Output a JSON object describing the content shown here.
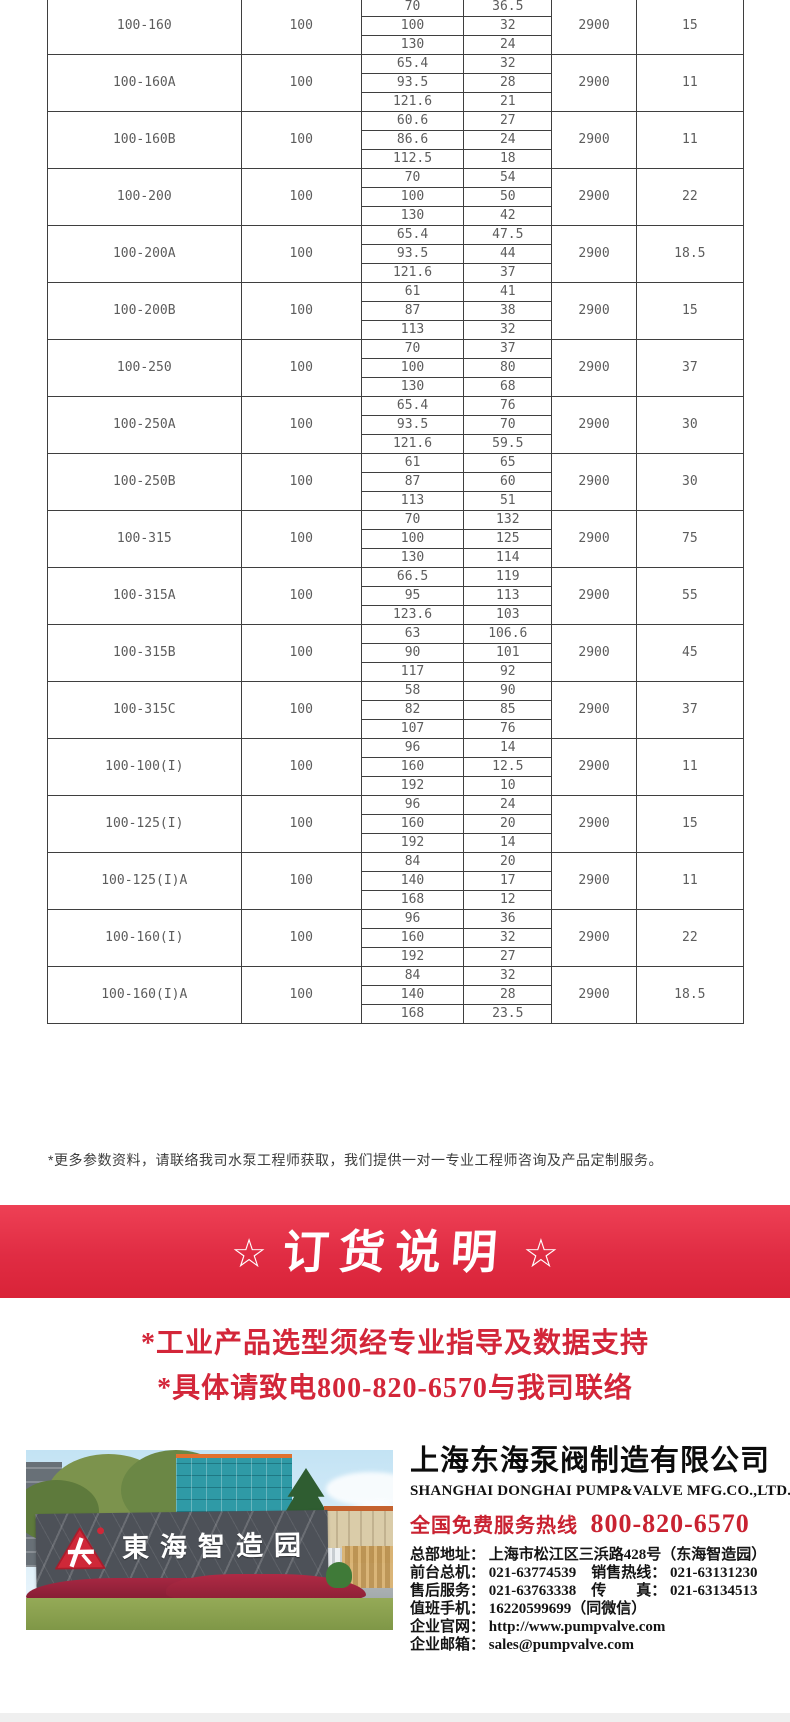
{
  "colors": {
    "accent_red": "#d32639",
    "banner_red": "#e02c43",
    "table_border": "#3f3f3f"
  },
  "table": {
    "rows": [
      {
        "model": "100-160",
        "dn": "100",
        "speed": "2900",
        "power": "15",
        "points": [
          [
            "70",
            "36.5"
          ],
          [
            "100",
            "32"
          ],
          [
            "130",
            "24"
          ]
        ]
      },
      {
        "model": "100-160A",
        "dn": "100",
        "speed": "2900",
        "power": "11",
        "points": [
          [
            "65.4",
            "32"
          ],
          [
            "93.5",
            "28"
          ],
          [
            "121.6",
            "21"
          ]
        ]
      },
      {
        "model": "100-160B",
        "dn": "100",
        "speed": "2900",
        "power": "11",
        "points": [
          [
            "60.6",
            "27"
          ],
          [
            "86.6",
            "24"
          ],
          [
            "112.5",
            "18"
          ]
        ]
      },
      {
        "model": "100-200",
        "dn": "100",
        "speed": "2900",
        "power": "22",
        "points": [
          [
            "70",
            "54"
          ],
          [
            "100",
            "50"
          ],
          [
            "130",
            "42"
          ]
        ]
      },
      {
        "model": "100-200A",
        "dn": "100",
        "speed": "2900",
        "power": "18.5",
        "points": [
          [
            "65.4",
            "47.5"
          ],
          [
            "93.5",
            "44"
          ],
          [
            "121.6",
            "37"
          ]
        ]
      },
      {
        "model": "100-200B",
        "dn": "100",
        "speed": "2900",
        "power": "15",
        "points": [
          [
            "61",
            "41"
          ],
          [
            "87",
            "38"
          ],
          [
            "113",
            "32"
          ]
        ]
      },
      {
        "model": "100-250",
        "dn": "100",
        "speed": "2900",
        "power": "37",
        "points": [
          [
            "70",
            "37"
          ],
          [
            "100",
            "80"
          ],
          [
            "130",
            "68"
          ]
        ]
      },
      {
        "model": "100-250A",
        "dn": "100",
        "speed": "2900",
        "power": "30",
        "points": [
          [
            "65.4",
            "76"
          ],
          [
            "93.5",
            "70"
          ],
          [
            "121.6",
            "59.5"
          ]
        ]
      },
      {
        "model": "100-250B",
        "dn": "100",
        "speed": "2900",
        "power": "30",
        "points": [
          [
            "61",
            "65"
          ],
          [
            "87",
            "60"
          ],
          [
            "113",
            "51"
          ]
        ]
      },
      {
        "model": "100-315",
        "dn": "100",
        "speed": "2900",
        "power": "75",
        "points": [
          [
            "70",
            "132"
          ],
          [
            "100",
            "125"
          ],
          [
            "130",
            "114"
          ]
        ]
      },
      {
        "model": "100-315A",
        "dn": "100",
        "speed": "2900",
        "power": "55",
        "points": [
          [
            "66.5",
            "119"
          ],
          [
            "95",
            "113"
          ],
          [
            "123.6",
            "103"
          ]
        ]
      },
      {
        "model": "100-315B",
        "dn": "100",
        "speed": "2900",
        "power": "45",
        "points": [
          [
            "63",
            "106.6"
          ],
          [
            "90",
            "101"
          ],
          [
            "117",
            "92"
          ]
        ]
      },
      {
        "model": "100-315C",
        "dn": "100",
        "speed": "2900",
        "power": "37",
        "points": [
          [
            "58",
            "90"
          ],
          [
            "82",
            "85"
          ],
          [
            "107",
            "76"
          ]
        ]
      },
      {
        "model": "100-100(I)",
        "dn": "100",
        "speed": "2900",
        "power": "11",
        "points": [
          [
            "96",
            "14"
          ],
          [
            "160",
            "12.5"
          ],
          [
            "192",
            "10"
          ]
        ]
      },
      {
        "model": "100-125(I)",
        "dn": "100",
        "speed": "2900",
        "power": "15",
        "points": [
          [
            "96",
            "24"
          ],
          [
            "160",
            "20"
          ],
          [
            "192",
            "14"
          ]
        ]
      },
      {
        "model": "100-125(I)A",
        "dn": "100",
        "speed": "2900",
        "power": "11",
        "points": [
          [
            "84",
            "20"
          ],
          [
            "140",
            "17"
          ],
          [
            "168",
            "12"
          ]
        ]
      },
      {
        "model": "100-160(I)",
        "dn": "100",
        "speed": "2900",
        "power": "22",
        "points": [
          [
            "96",
            "36"
          ],
          [
            "160",
            "32"
          ],
          [
            "192",
            "27"
          ]
        ]
      },
      {
        "model": "100-160(I)A",
        "dn": "100",
        "speed": "2900",
        "power": "18.5",
        "points": [
          [
            "84",
            "32"
          ],
          [
            "140",
            "28"
          ],
          [
            "168",
            "23.5"
          ]
        ]
      }
    ]
  },
  "note": "*更多参数资料，请联络我司水泵工程师获取，我们提供一对一专业工程师咨询及产品定制服务。",
  "banner": {
    "star": "☆",
    "title": "订货说明"
  },
  "notices": [
    "*工业产品选型须经专业指导及数据支持",
    "*具体请致电800-820-6570与我司联络"
  ],
  "photo": {
    "sign_text": "東海智造园"
  },
  "company": {
    "name_cn": "上海东海泵阀制造有限公司",
    "name_en": "SHANGHAI DONGHAI PUMP&VALVE MFG.CO.,LTD.",
    "hotline_label": "全国免费服务热线",
    "hotline_number": "800-820-6570",
    "details": [
      "总部地址： 上海市松江区三浜路428号（东海智造园）",
      "前台总机： 021-63774539　销售热线： 021-63131230",
      "售后服务： 021-63763338　传　　真： 021-63134513",
      "值班手机： 16220599699（同微信）",
      "企业官网： http://www.pumpvalve.com",
      "企业邮箱： sales@pumpvalve.com"
    ]
  }
}
